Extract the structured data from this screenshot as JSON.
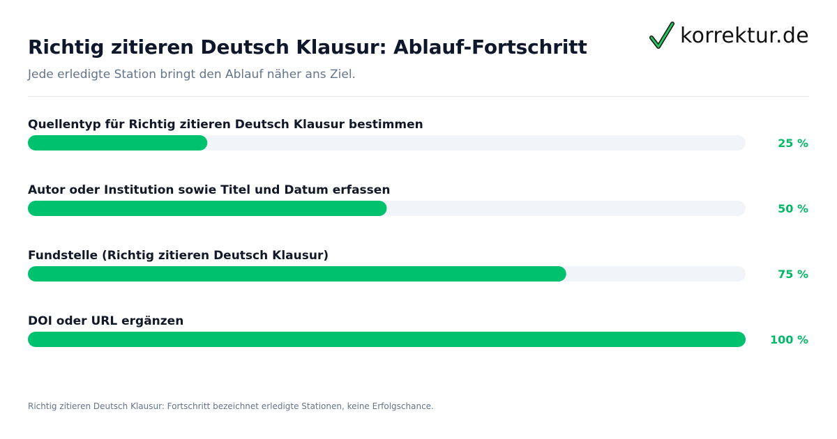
{
  "header": {
    "title": "Richtig zitieren Deutsch Klausur: Ablauf-Fortschritt",
    "subtitle": "Jede erledigte Station bringt den Ablauf näher ans Ziel."
  },
  "logo": {
    "text": "korrektur.de",
    "icon": "check-icon",
    "check_color": "#22c55e"
  },
  "footnote": "Richtig zitieren Deutsch Klausur: Fortschritt bezeichnet erledigte Stationen, keine Erfolgschance.",
  "colors": {
    "bar_fill": "#00c16e",
    "track": "#f1f5f9",
    "percent_text": "#00b865"
  },
  "chart_data": {
    "type": "bar",
    "orientation": "horizontal",
    "categories": [
      "Quellentyp für Richtig zitieren Deutsch Klausur bestimmen",
      "Autor oder Institution sowie Titel und Datum erfassen",
      "Fundstelle (Richtig zitieren Deutsch Klausur)",
      "DOI oder URL ergänzen"
    ],
    "values": [
      25,
      50,
      75,
      100
    ],
    "value_labels": [
      "25 %",
      "50 %",
      "75 %",
      "100 %"
    ],
    "xlim": [
      0,
      100
    ],
    "grid": false,
    "legend": "none"
  }
}
